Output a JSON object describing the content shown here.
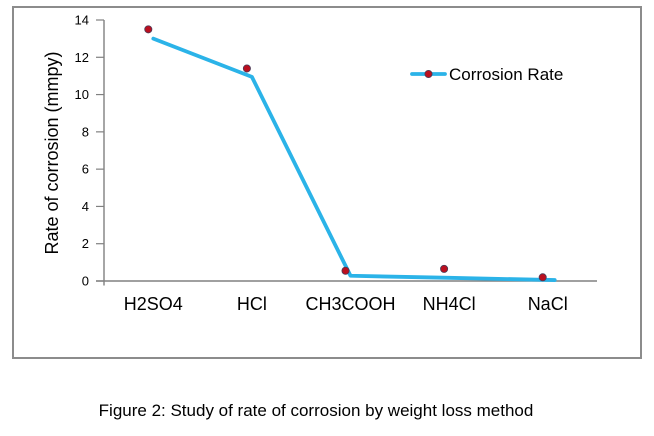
{
  "caption": "Figure 2: Study of rate of corrosion by weight loss method",
  "chart_data": {
    "type": "line",
    "categories": [
      "H2SO4",
      "HCl",
      "CH3COOH",
      "NH4Cl",
      "NaCl"
    ],
    "series": [
      {
        "name": "Corrosion Rate",
        "values": [
          13.5,
          11.4,
          0.55,
          0.65,
          0.2
        ]
      }
    ],
    "line_vertex_values": [
      13.0,
      10.95,
      0.28,
      0.17,
      0.05
    ],
    "title": "",
    "xlabel": "",
    "ylabel": "Rate of corrosion (mmpy)",
    "ylim": [
      0,
      14
    ],
    "yticks": [
      0,
      2,
      4,
      6,
      8,
      10,
      12,
      14
    ],
    "grid": false,
    "legend": {
      "label": "Corrosion Rate",
      "position": "inside-upper-right"
    },
    "colors": {
      "line": "#2BB3E8",
      "marker_fill": "#BB0F1F",
      "marker_edge": "#4A3B57",
      "axis": "#808080",
      "frame_border": "#8C8C8C",
      "text": "#000000"
    }
  }
}
